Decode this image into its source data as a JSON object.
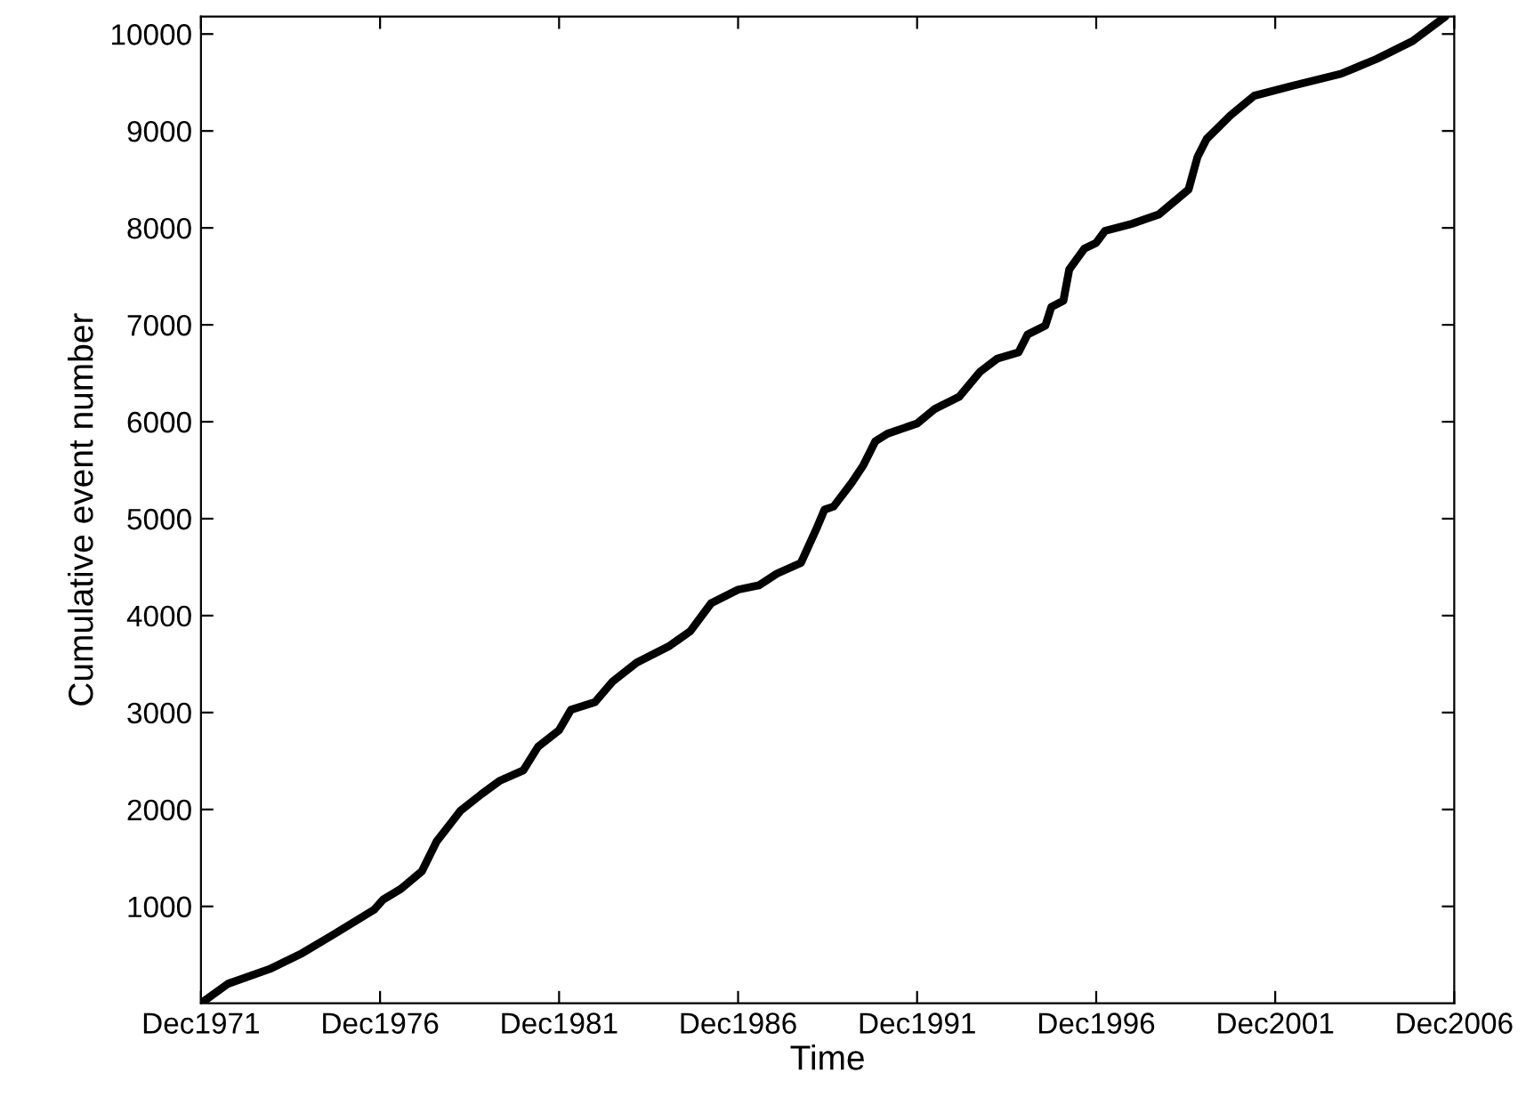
{
  "chart_data": {
    "type": "line",
    "xlabel": "Time",
    "ylabel": "Cumulative event number",
    "x": [
      "1971-12",
      "1972-09",
      "1973-11",
      "1974-10",
      "1975-08",
      "1976-10",
      "1977-01",
      "1977-07",
      "1978-02",
      "1978-07",
      "1979-03",
      "1979-10",
      "1980-04",
      "1980-12",
      "1981-05",
      "1981-12",
      "1982-04",
      "1982-12",
      "1983-06",
      "1984-02",
      "1985-01",
      "1985-08",
      "1986-03",
      "1986-12",
      "1987-07",
      "1988-01",
      "1988-09",
      "1989-02",
      "1989-05",
      "1989-08",
      "1990-02",
      "1990-06",
      "1990-10",
      "1991-02",
      "1991-12",
      "1992-06",
      "1993-02",
      "1993-09",
      "1994-03",
      "1994-10",
      "1995-01",
      "1995-07",
      "1995-09",
      "1996-01",
      "1996-03",
      "1996-08",
      "1996-12",
      "1997-03",
      "1997-12",
      "1998-09",
      "1999-07",
      "1999-10",
      "2000-01",
      "2000-09",
      "2001-05",
      "2002-06",
      "2003-10",
      "2004-10",
      "2005-10",
      "2006-09"
    ],
    "series": [
      {
        "color": "#000000",
        "values": [
          0,
          202,
          354,
          519,
          702,
          966,
          1070,
          1180,
          1363,
          1670,
          1987,
          2158,
          2294,
          2404,
          2648,
          2818,
          3028,
          3106,
          3321,
          3516,
          3688,
          3840,
          4128,
          4268,
          4312,
          4433,
          4543,
          4881,
          5094,
          5125,
          5369,
          5552,
          5798,
          5877,
          5982,
          6134,
          6257,
          6514,
          6653,
          6716,
          6899,
          6991,
          7185,
          7248,
          7571,
          7785,
          7846,
          7969,
          8042,
          8139,
          8396,
          8734,
          8917,
          9161,
          9363,
          9468,
          9589,
          9743,
          9927,
          10180
        ]
      }
    ],
    "xlim": [
      "1971-12",
      "2006-12"
    ],
    "xticks": [
      {
        "value": "1971-12",
        "label": "Dec1971"
      },
      {
        "value": "1976-12",
        "label": "Dec1976"
      },
      {
        "value": "1981-12",
        "label": "Dec1981"
      },
      {
        "value": "1986-12",
        "label": "Dec1986"
      },
      {
        "value": "1991-12",
        "label": "Dec1991"
      },
      {
        "value": "1996-12",
        "label": "Dec1996"
      },
      {
        "value": "2001-12",
        "label": "Dec2001"
      },
      {
        "value": "2006-12",
        "label": "Dec2006"
      }
    ],
    "ylim": [
      0,
      10180
    ],
    "yticks": [
      1000,
      2000,
      3000,
      4000,
      5000,
      6000,
      7000,
      8000,
      9000,
      10000
    ],
    "grid": false,
    "legend": false,
    "marker": "none",
    "line_style": "solid"
  }
}
